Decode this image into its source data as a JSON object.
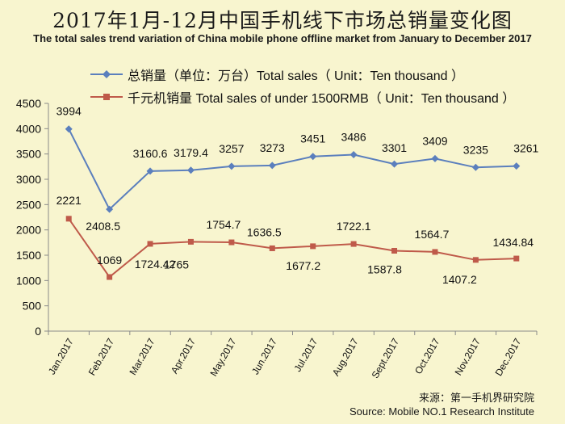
{
  "title_cn": "2017年1月-12月中国手机线下市场总销量变化图",
  "title_en": "The total sales trend variation of China mobile phone offline market from January to December 2017",
  "source_cn": "来源：第一手机界研究院",
  "source_en": "Source: Mobile NO.1 Research Institute",
  "colors": {
    "total": "#5b7fbd",
    "under1500": "#bf5a4a",
    "background": "#f8f5cf"
  },
  "chart_data": {
    "type": "line",
    "categories": [
      "Jan.2017",
      "Feb.2017",
      "Mar.2017",
      "Apr.2017",
      "May.2017",
      "Jun.2017",
      "Jul.2017",
      "Aug.2017",
      "Sept.2017",
      "Oct.2017",
      "Nov.2017",
      "Dec.2017"
    ],
    "series": [
      {
        "name": "总销量（单位：万台）Total sales（ Unit：Ten thousand ）",
        "marker": "diamond",
        "values": [
          3994,
          2408.5,
          3160.6,
          3179.4,
          3257,
          3273,
          3451,
          3486,
          3301,
          3409,
          3235,
          3261
        ],
        "labels": [
          "3994",
          "2408.5",
          "3160.6",
          "3179.4",
          "3257",
          "3273",
          "3451",
          "3486",
          "3301",
          "3409",
          "3235",
          "3261"
        ]
      },
      {
        "name": "千元机销量 Total sales of under 1500RMB（ Unit：Ten thousand ）",
        "marker": "square",
        "values": [
          2221,
          1069,
          1724.42,
          1765,
          1754.7,
          1636.5,
          1677.2,
          1722.1,
          1587.8,
          1564.7,
          1407.2,
          1434.84
        ],
        "labels": [
          "2221",
          "1069",
          "1724.42",
          "1765",
          "1754.7",
          "1636.5",
          "1677.2",
          "1722.1",
          "1587.8",
          "1564.7",
          "1407.2",
          "1434.84"
        ]
      }
    ],
    "ylim": [
      0,
      4500
    ],
    "yticks": [
      "0",
      "500",
      "1000",
      "1500",
      "2000",
      "2500",
      "3000",
      "3500",
      "4000",
      "4500"
    ],
    "grid": false,
    "legend": "top-left"
  }
}
